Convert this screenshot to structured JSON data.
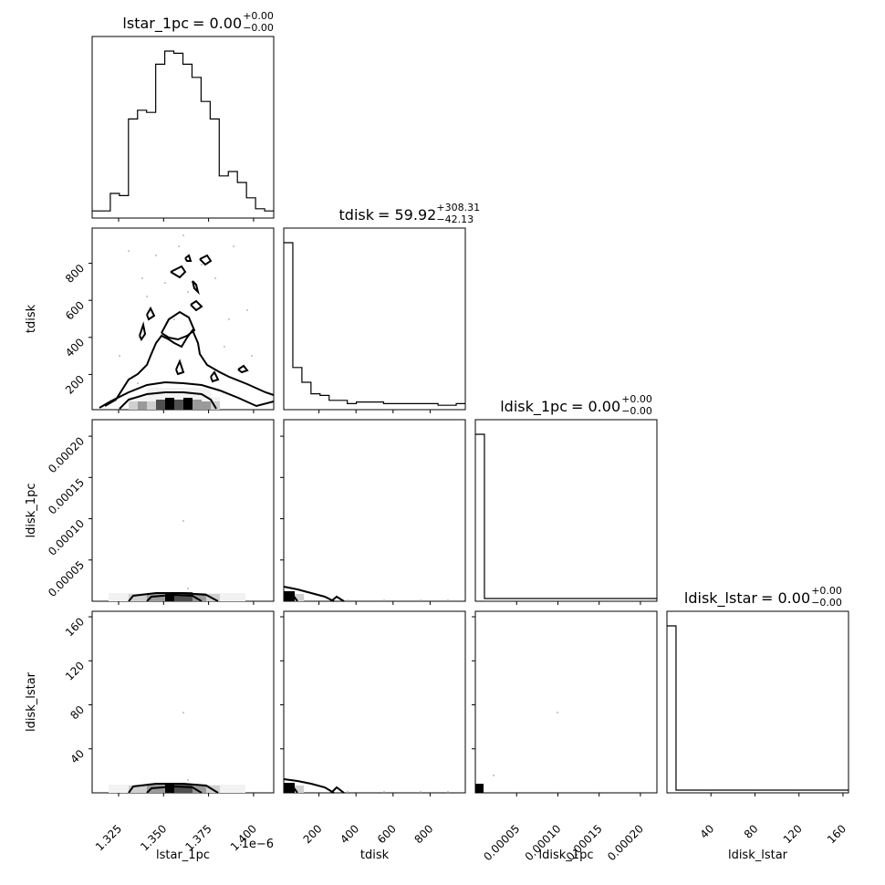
{
  "chart_data": {
    "type": "corner",
    "parameters": [
      "lstar_1pc",
      "tdisk",
      "ldisk_1pc",
      "ldisk_lstar"
    ],
    "axis_labels": [
      "lstar_1pc",
      "tdisk",
      "ldisk_1pc",
      "ldisk_lstar"
    ],
    "offset_text": "1e−6",
    "ranges": [
      [
        1.3103,
        1.4112
      ],
      [
        10,
        990
      ],
      [
        0,
        0.00022
      ],
      [
        0,
        165
      ]
    ],
    "ticks": [
      {
        "values": [
          1.325,
          1.35,
          1.375,
          1.4
        ],
        "labels": [
          "1.325",
          "1.350",
          "1.375",
          "1.400"
        ]
      },
      {
        "values": [
          200,
          400,
          600,
          800
        ],
        "labels": [
          "200",
          "400",
          "600",
          "800"
        ]
      },
      {
        "values": [
          5e-05,
          0.0001,
          0.00015,
          0.0002
        ],
        "labels": [
          "0.00005",
          "0.00010",
          "0.00015",
          "0.00020"
        ]
      },
      {
        "values": [
          40,
          80,
          120,
          160
        ],
        "labels": [
          "40",
          "80",
          "120",
          "160"
        ]
      }
    ],
    "titles": [
      {
        "name": "lstar_1pc",
        "value": "0.00",
        "plus": "+0.00",
        "minus": "−0.00"
      },
      {
        "name": "tdisk",
        "value": "59.92",
        "plus": "+308.31",
        "minus": "−42.13"
      },
      {
        "name": "ldisk_1pc",
        "value": "0.00",
        "plus": "+0.00",
        "minus": "−0.00"
      },
      {
        "name": "ldisk_lstar",
        "value": "0.00",
        "plus": "+0.00",
        "minus": "−0.00"
      }
    ],
    "histograms": [
      [
        2,
        2,
        10,
        9,
        44,
        48,
        47,
        69,
        75,
        74,
        69,
        63,
        52,
        44,
        18,
        20,
        15,
        8,
        3,
        2
      ],
      [
        100,
        24,
        15,
        8,
        7,
        4,
        4,
        2,
        3,
        3,
        3,
        2,
        2,
        2,
        2,
        2,
        2,
        1,
        1,
        2
      ],
      [
        100,
        0,
        0,
        0,
        0,
        0,
        0,
        0,
        0,
        0,
        0,
        0,
        0,
        0,
        0,
        0,
        0,
        0,
        0,
        0
      ],
      [
        100,
        0,
        0,
        0,
        0,
        0,
        0,
        0,
        0,
        0,
        0,
        0,
        0,
        0,
        0,
        0,
        0,
        0,
        0,
        0
      ]
    ],
    "grid": false,
    "legend": "none"
  }
}
